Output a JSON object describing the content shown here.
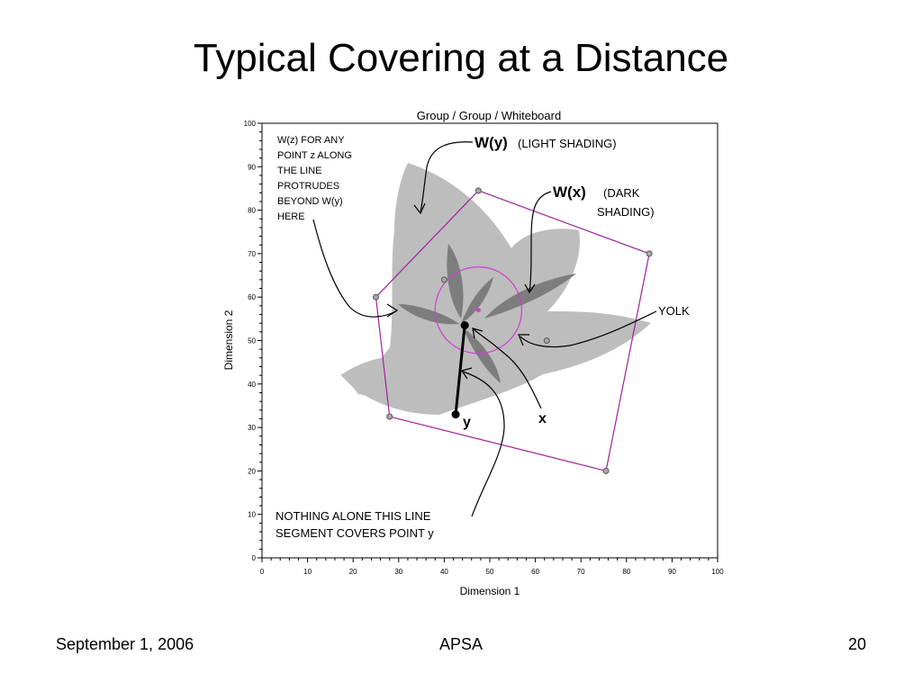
{
  "slide": {
    "title": "Typical Covering at a Distance",
    "footer_left": "September 1, 2006",
    "footer_center": "APSA",
    "footer_right": "20"
  },
  "figure": {
    "title": "Group / Group / Whiteboard",
    "xlabel": "Dimension 1",
    "ylabel": "Dimension 2",
    "xlim": [
      0,
      100
    ],
    "ylim": [
      0,
      100
    ],
    "xticks": [
      "0",
      "10",
      "20",
      "30",
      "40",
      "50",
      "60",
      "70",
      "80",
      "90",
      "100"
    ],
    "yticks": [
      "0",
      "10",
      "20",
      "30",
      "40",
      "50",
      "60",
      "70",
      "80",
      "90",
      "100"
    ],
    "colors": {
      "light_shading": "#bdbdbd",
      "dark_shading": "#7d7d7d",
      "boundary": "#a020a0",
      "yolk_circle": "#d040d0"
    },
    "ideal_points": [
      [
        25,
        60
      ],
      [
        28,
        32.5
      ],
      [
        40,
        64
      ],
      [
        47.5,
        84.5
      ],
      [
        62.5,
        50
      ],
      [
        75.5,
        20
      ],
      [
        85,
        70
      ]
    ],
    "yolk": {
      "center": [
        47.5,
        57
      ],
      "radius": 9.5
    },
    "segment": {
      "x": [
        44.5,
        53.5
      ],
      "y": [
        42.5,
        33
      ]
    },
    "annotations": {
      "wz_note": [
        "W(z) FOR ANY",
        "POINT z ALONG",
        "THE LINE",
        "PROTRUDES",
        "BEYOND W(y)",
        "HERE"
      ],
      "wy_label": "W(y)",
      "wy_desc": "(LIGHT SHADING)",
      "wx_label": "W(x)",
      "wx_desc_1": "(DARK",
      "wx_desc_2": "SHADING)",
      "yolk_label": "YOLK",
      "x_label": "x",
      "y_label": "y",
      "bottom_note_1": "NOTHING ALONE THIS LINE",
      "bottom_note_2": "SEGMENT COVERS POINT y"
    }
  }
}
